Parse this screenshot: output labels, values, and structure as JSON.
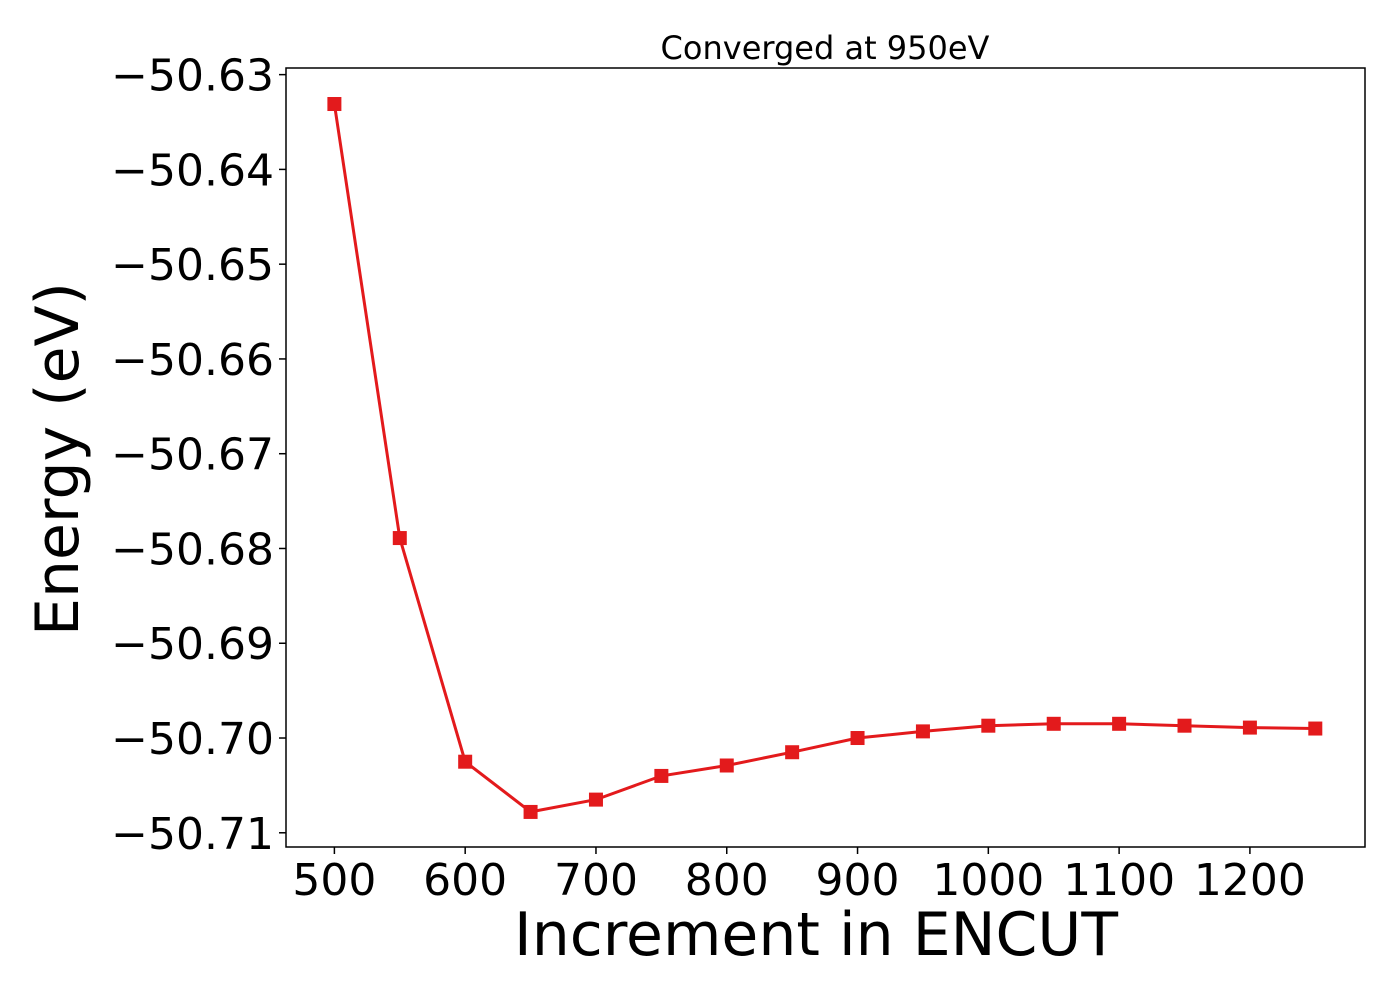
{
  "chart_data": {
    "type": "line",
    "title": "Converged at 950eV",
    "xlabel": "Increment in ENCUT",
    "ylabel": "Energy (eV)",
    "xlim": [
      463,
      1288
    ],
    "ylim": [
      -50.7115,
      -50.6293
    ],
    "x_ticks": [
      500,
      600,
      700,
      800,
      900,
      1000,
      1100,
      1200
    ],
    "x_tick_labels": [
      "500",
      "600",
      "700",
      "800",
      "900",
      "1000",
      "1100",
      "1200"
    ],
    "y_ticks": [
      -50.63,
      -50.64,
      -50.65,
      -50.66,
      -50.67,
      -50.68,
      -50.69,
      -50.7,
      -50.71
    ],
    "y_tick_labels": [
      "−50.63",
      "−50.64",
      "−50.65",
      "−50.66",
      "−50.67",
      "−50.68",
      "−50.69",
      "−50.70",
      "−50.71"
    ],
    "grid": false,
    "series": [
      {
        "color": "#e31a1c",
        "marker": "square",
        "x": [
          500,
          550,
          600,
          650,
          700,
          750,
          800,
          850,
          900,
          950,
          1000,
          1050,
          1100,
          1150,
          1200,
          1250
        ],
        "y": [
          -50.6331,
          -50.6789,
          -50.7025,
          -50.7078,
          -50.7065,
          -50.704,
          -50.7029,
          -50.7015,
          -50.7,
          -50.6993,
          -50.6987,
          -50.6985,
          -50.6985,
          -50.6987,
          -50.6989,
          -50.699
        ]
      }
    ]
  }
}
